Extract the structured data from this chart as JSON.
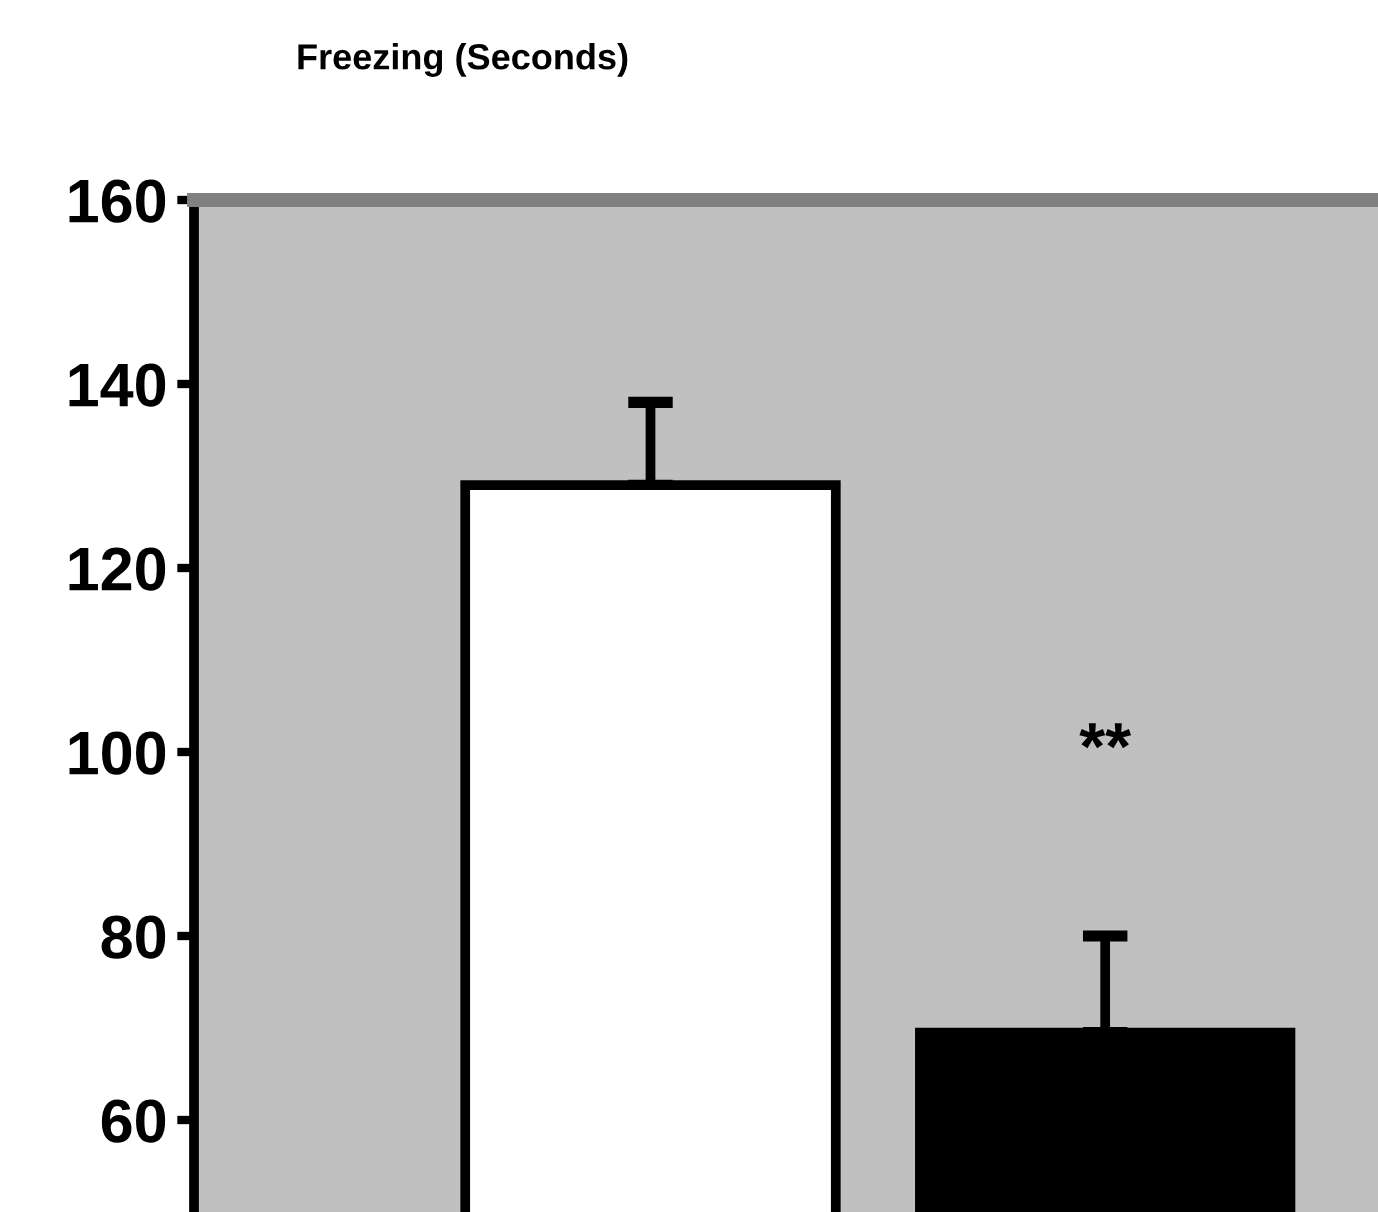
{
  "chart_data": {
    "type": "bar",
    "title": "Freezing (Seconds)",
    "categories": [
      null,
      null
    ],
    "values": [
      129,
      69.5
    ],
    "colors": [
      "#ffffff",
      "#000000"
    ],
    "errors": [
      [
        129,
        138
      ],
      [
        69.5,
        80
      ]
    ],
    "ylim": [
      50,
      160
    ],
    "yticks": [
      60,
      80,
      100,
      120,
      140,
      160
    ],
    "grid": false,
    "legend": false,
    "tick_labels": "y",
    "annotations": [
      "**"
    ]
  }
}
